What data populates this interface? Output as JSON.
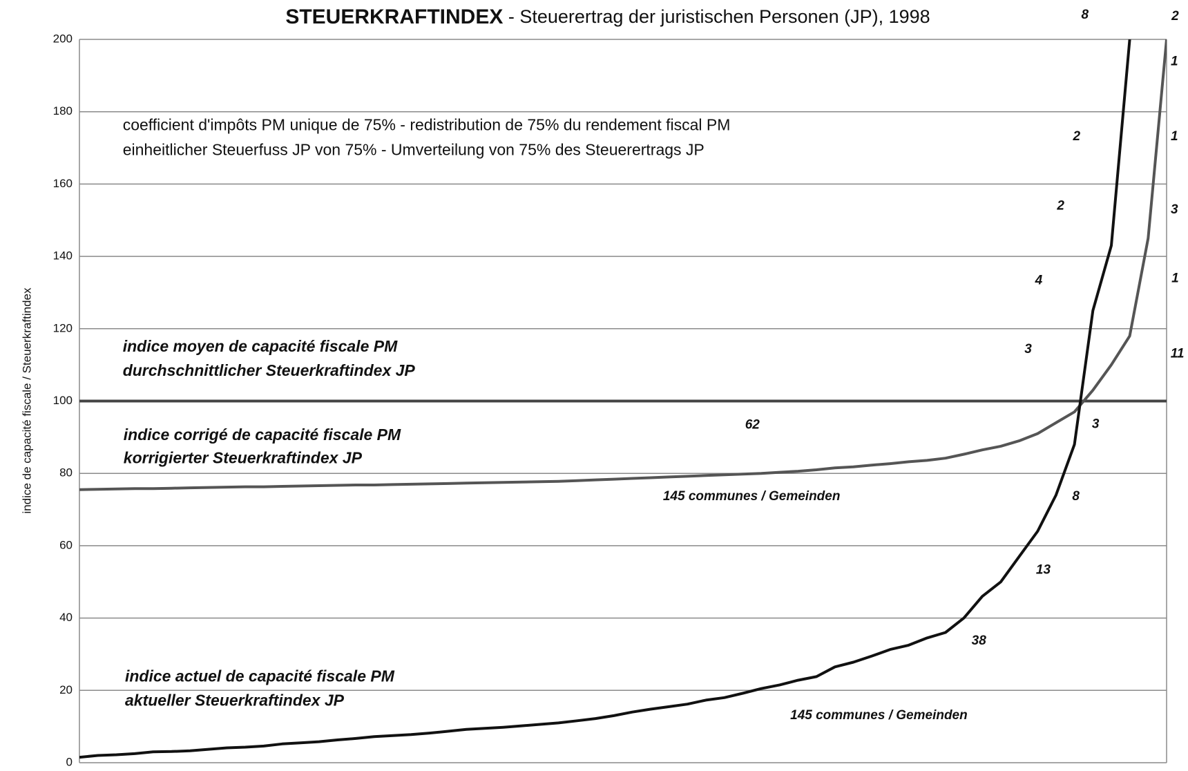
{
  "chart_data": {
    "type": "line",
    "title_bold": "STEUERKRAFTINDEX",
    "title_rest": " - Steuerertrag der juristischen Personen (JP), 1998",
    "y_label": "indice de capacité fiscale / Steuerkraftindex",
    "ylim": [
      0,
      200
    ],
    "yticks": [
      0,
      20,
      40,
      60,
      80,
      100,
      120,
      140,
      160,
      180,
      200
    ],
    "grid": true,
    "reference_value": 100,
    "series": [
      {
        "name": "indice corrigé de capacité fiscale PM / korrigierter Steuerkraftindex JP",
        "color": "#555555",
        "values": [
          75.5,
          75.6,
          75.7,
          75.8,
          75.8,
          75.9,
          76.0,
          76.1,
          76.2,
          76.3,
          76.3,
          76.4,
          76.5,
          76.6,
          76.7,
          76.8,
          76.8,
          76.9,
          77.0,
          77.1,
          77.2,
          77.3,
          77.4,
          77.5,
          77.6,
          77.7,
          77.8,
          78.0,
          78.2,
          78.4,
          78.6,
          78.8,
          79.0,
          79.2,
          79.4,
          79.6,
          79.8,
          80.0,
          80.3,
          80.6,
          81,
          81.5,
          81.8,
          82.3,
          82.7,
          83.2,
          83.6,
          84.2,
          85.3,
          86.5,
          87.5,
          89,
          91,
          94,
          97,
          103,
          110,
          118,
          145,
          200
        ]
      },
      {
        "name": "indice actuel de capacité fiscale PM / aktueller Steuerkraftindex JP",
        "color": "#111111",
        "values": [
          1.5,
          2,
          2.2,
          2.5,
          3,
          3.1,
          3.3,
          3.7,
          4.1,
          4.3,
          4.6,
          5.2,
          5.5,
          5.8,
          6.3,
          6.7,
          7.2,
          7.5,
          7.8,
          8.2,
          8.7,
          9.2,
          9.5,
          9.8,
          10.2,
          10.6,
          11.0,
          11.6,
          12.2,
          13,
          14,
          14.8,
          15.5,
          16.2,
          17.3,
          18,
          19.2,
          20.5,
          21.5,
          22.8,
          23.8,
          26.5,
          27.8,
          29.5,
          31.3,
          32.5,
          34.5,
          36,
          40,
          46,
          50,
          57,
          64,
          74,
          88,
          125,
          143,
          200,
          null,
          null
        ]
      }
    ],
    "annotations": [
      "coefficient d'impôts PM unique de 75% -  redistribution de 75% du rendement fiscal PM",
      "einheitlicher Steuerfuss JP von 75% - Umverteilung von 75% des Steuerertrags JP",
      "indice moyen de capacité fiscale PM",
      "durchschnittlicher Steuerkraftindex JP",
      "indice corrigé de capacité fiscale PM",
      "korrigierter Steuerkraftindex JP",
      "indice actuel de capacité fiscale PM",
      "aktueller Steuerkraftindex JP",
      "62",
      "145 communes / Gemeinden",
      "145 communes / Gemeinden",
      "8",
      "2",
      "1",
      "2",
      "1",
      "2",
      "3",
      "4",
      "1",
      "3",
      "11",
      "3",
      "8",
      "13",
      "38"
    ]
  }
}
